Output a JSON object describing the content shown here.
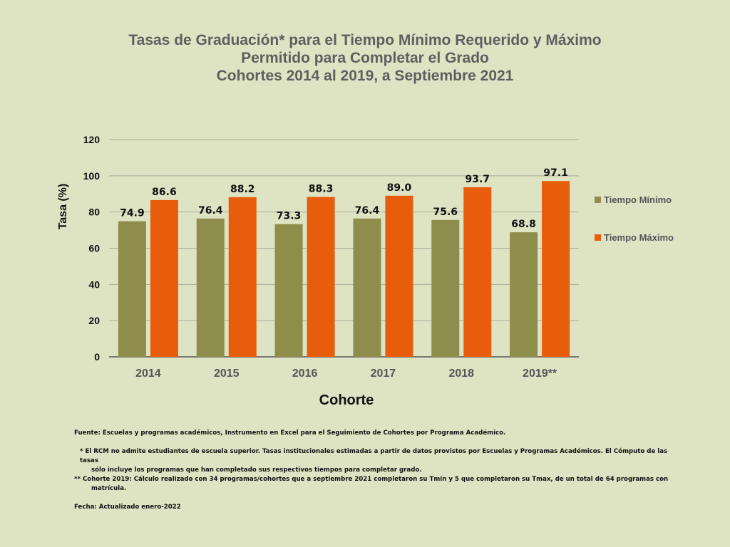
{
  "title_lines": [
    "Tasas de Graduación* para el Tiempo Mínimo Requerido y Máximo",
    "Permitido para Completar el Grado",
    "Cohortes 2014 al 2019, a Septiembre 2021"
  ],
  "colors": {
    "background": "#dde3c3",
    "min": "#8f8d4b",
    "max": "#e85d0c",
    "grid": "#a9ab98",
    "axis": "#555555"
  },
  "chart_data": {
    "type": "bar",
    "categories": [
      "2014",
      "2015",
      "2016",
      "2017",
      "2018",
      "2019**"
    ],
    "series": [
      {
        "name": "Tiempo Mínimo",
        "values": [
          74.9,
          76.4,
          73.3,
          76.4,
          75.6,
          68.8
        ],
        "labels": [
          "74.9",
          "76.4",
          "73.3",
          "76.4",
          "75.6",
          "68.8"
        ]
      },
      {
        "name": "Tiempo Máximo",
        "values": [
          86.6,
          88.2,
          88.3,
          89.0,
          93.7,
          97.1
        ],
        "labels": [
          "86.6",
          "88.2",
          "88.3",
          "89.0",
          "93.7",
          "97.1"
        ]
      }
    ],
    "xlabel": "Cohorte",
    "ylabel": "Tasa (%)",
    "ylim": [
      0,
      120
    ],
    "yticks": [
      0,
      20,
      40,
      60,
      80,
      100,
      120
    ],
    "grid": true,
    "legend_position": "right"
  },
  "notes": {
    "fuente": "Fuente: Escuelas y programas académicos, Instrumento en Excel para el Seguimiento de Cohortes por Programa Académico.",
    "note1_line1": "* El RCM no admite estudiantes de escuela superior. Tasas institucionales estimadas a partir de datos provistos por Escuelas y  Programas Académicos. El Cómputo de las tasas",
    "note1_line2": "sólo incluye los programas que han completado sus respectivos  tiempos para completar grado.",
    "note2_line1": "** Cohorte 2019: Cálculo realizado con 34 programas/cohortes que a septiembre 2021 completaron su Tmin y 5 que completaron su Tmax, de un total de 64 programas con",
    "note2_line2": "matrícula.",
    "fecha": "Fecha: Actualizado enero-2022"
  }
}
